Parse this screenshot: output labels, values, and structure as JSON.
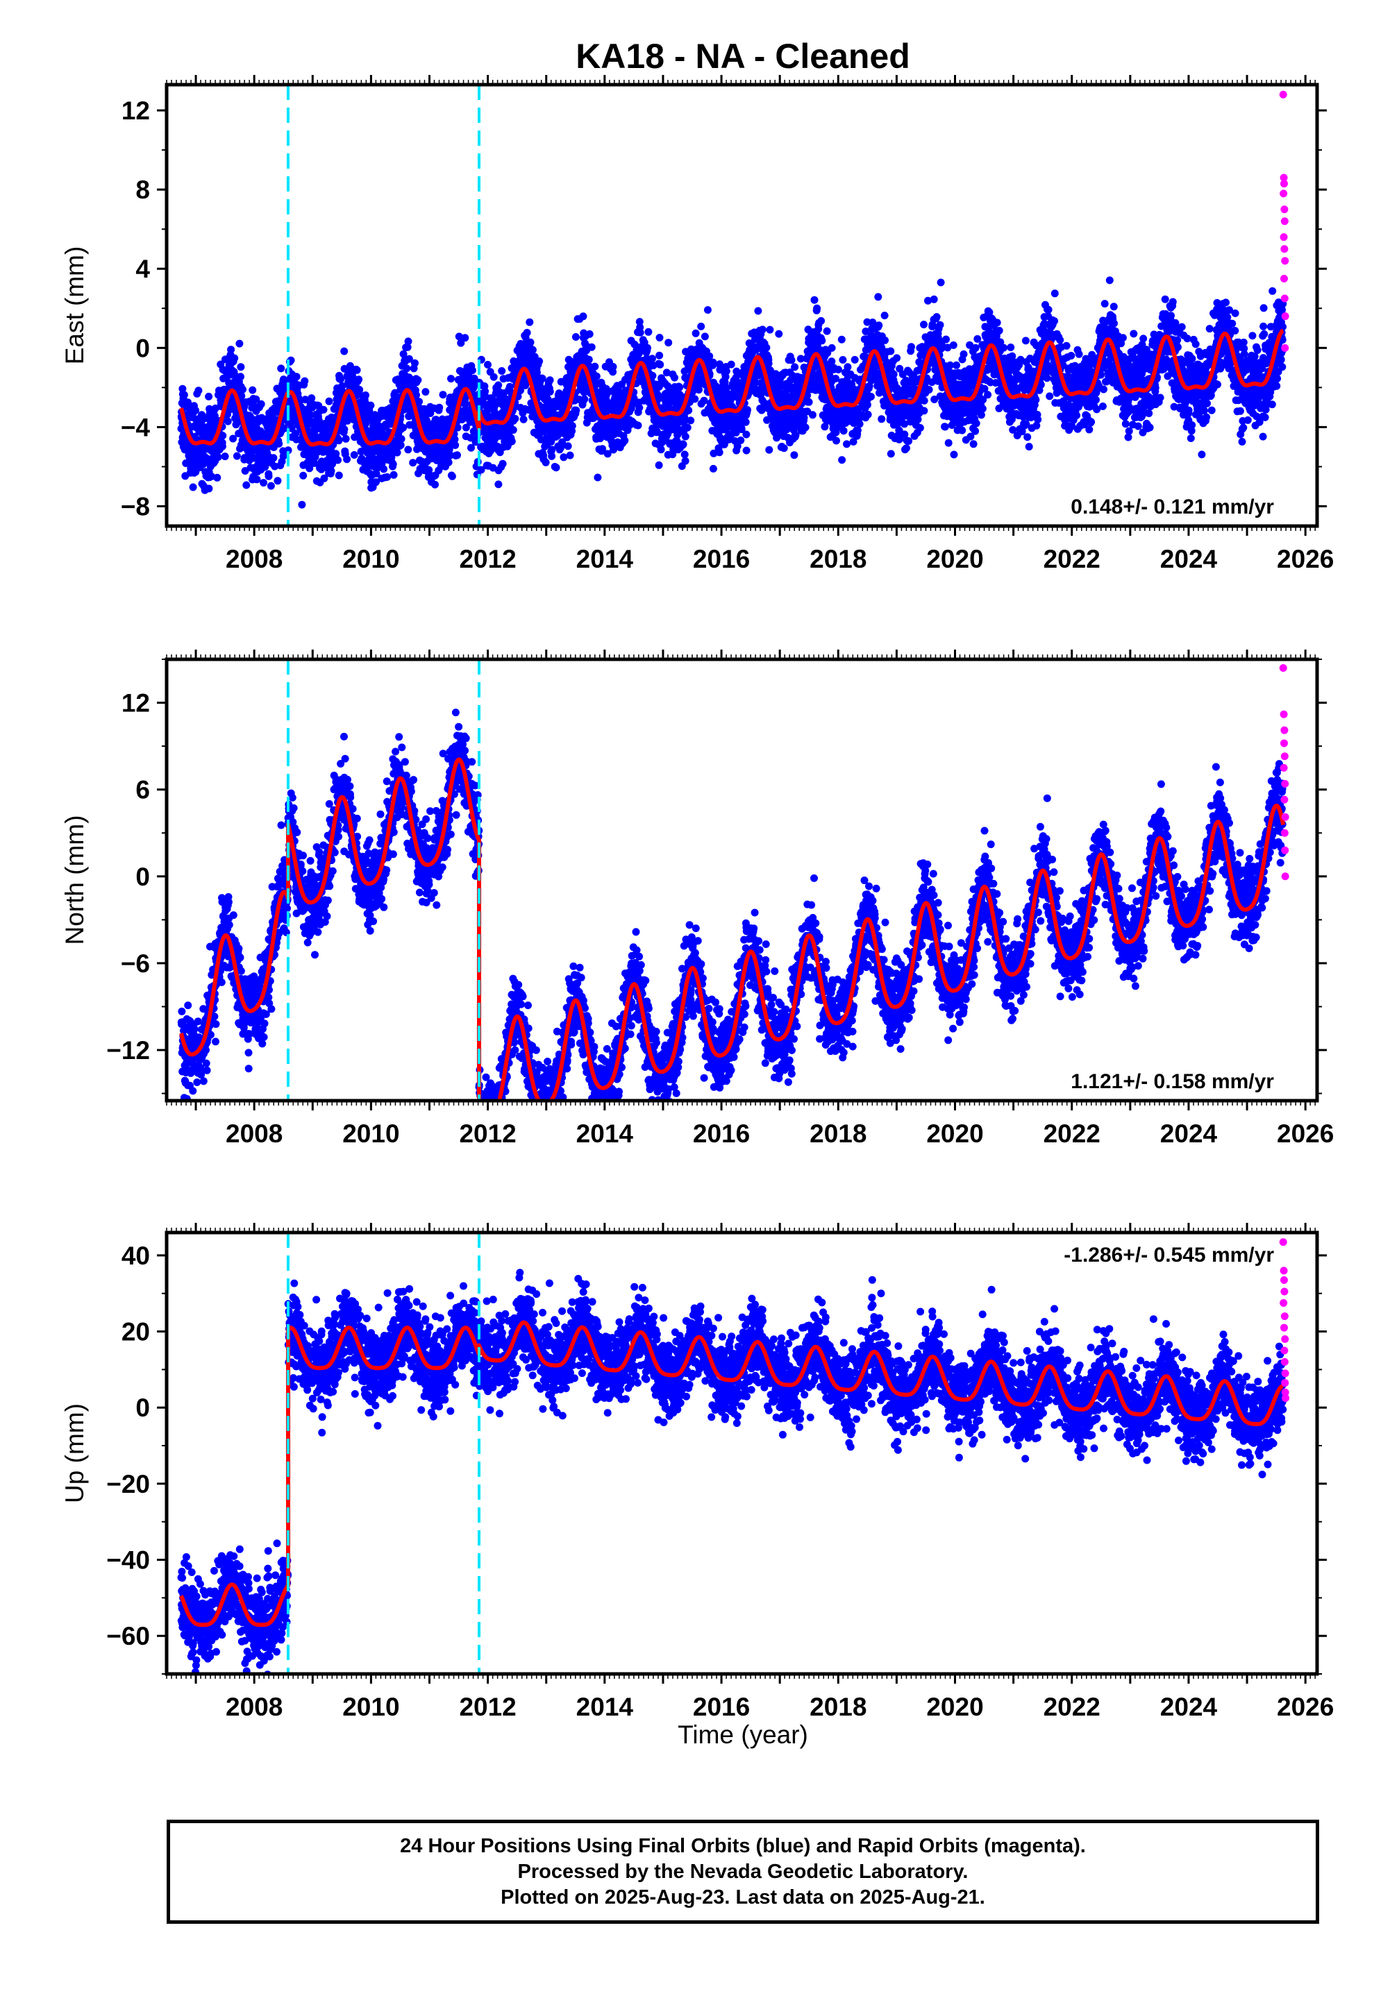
{
  "title": "KA18  - NA - Cleaned",
  "colors": {
    "final": "#0000ff",
    "rapid": "#ff00ff",
    "model": "#ff0000",
    "breaks": "#00e5ff",
    "frame": "#000000"
  },
  "xlabel": "Time (year)",
  "chart_data": [
    {
      "type": "scatter",
      "component": "East",
      "ylabel": "East (mm)",
      "xlim": [
        2006.5,
        2026.2
      ],
      "ylim": [
        -9,
        13.3
      ],
      "yticks": [
        -8,
        -4,
        0,
        4,
        8,
        12
      ],
      "xticks": [
        2008,
        2010,
        2012,
        2014,
        2016,
        2018,
        2020,
        2022,
        2024,
        2026
      ],
      "breaks": [
        2008.58,
        2011.85
      ],
      "rate_text": "0.148+/- 0.121 mm/yr",
      "rate_position": "bottom-right",
      "model": {
        "segments": [
          {
            "x0": 2006.75,
            "x1": 2008.58,
            "offset": -3.9,
            "trend": 0.0
          },
          {
            "x0": 2008.58,
            "x1": 2011.85,
            "offset": -3.9,
            "trend": 0.05
          },
          {
            "x0": 2011.85,
            "x1": 2025.62,
            "offset": -1.9,
            "trend": 0.148
          }
        ],
        "annual_amplitude": 1.3,
        "annual_peak_phase": 0.62,
        "semiannual_amplitude": 0.45
      },
      "scatter_std": 1.0,
      "rapid_points": [
        [
          2025.62,
          12.8
        ],
        [
          2025.63,
          8.6
        ],
        [
          2025.635,
          8.3
        ],
        [
          2025.625,
          7.8
        ],
        [
          2025.64,
          7.0
        ],
        [
          2025.645,
          6.4
        ],
        [
          2025.63,
          5.6
        ],
        [
          2025.64,
          5.0
        ],
        [
          2025.65,
          4.4
        ],
        [
          2025.635,
          3.5
        ],
        [
          2025.645,
          2.5
        ],
        [
          2025.655,
          1.6
        ],
        [
          2025.65,
          0.0
        ]
      ]
    },
    {
      "type": "scatter",
      "component": "North",
      "ylabel": "North (mm)",
      "xlim": [
        2006.5,
        2026.2
      ],
      "ylim": [
        -15.5,
        15
      ],
      "yticks": [
        -12,
        -6,
        0,
        6,
        12
      ],
      "xticks": [
        2008,
        2010,
        2012,
        2014,
        2016,
        2018,
        2020,
        2022,
        2024,
        2026
      ],
      "breaks": [
        2008.58,
        2011.85
      ],
      "rate_text": "1.121+/- 0.158 mm/yr",
      "rate_position": "bottom-right",
      "model": {
        "segments": [
          {
            "x0": 2006.75,
            "x1": 2008.58,
            "offset": -7.5,
            "trend": 3.0
          },
          {
            "x0": 2008.58,
            "x1": 2011.85,
            "offset": 2.5,
            "trend": 1.3
          },
          {
            "x0": 2011.85,
            "x1": 2025.62,
            "offset": -6.6,
            "trend": 1.121
          }
        ],
        "annual_amplitude": 3.3,
        "annual_peak_phase": 0.5,
        "semiannual_amplitude": 0.6
      },
      "scatter_std": 1.3,
      "rapid_points": [
        [
          2025.62,
          14.4
        ],
        [
          2025.63,
          11.2
        ],
        [
          2025.64,
          10.1
        ],
        [
          2025.635,
          9.2
        ],
        [
          2025.645,
          8.3
        ],
        [
          2025.63,
          7.5
        ],
        [
          2025.65,
          6.4
        ],
        [
          2025.64,
          5.3
        ],
        [
          2025.655,
          4.1
        ],
        [
          2025.645,
          3.0
        ],
        [
          2025.65,
          1.8
        ],
        [
          2025.655,
          0.0
        ]
      ]
    },
    {
      "type": "scatter",
      "component": "Up",
      "ylabel": "Up (mm)",
      "xlim": [
        2006.5,
        2026.2
      ],
      "ylim": [
        -70,
        46
      ],
      "yticks": [
        -60,
        -40,
        -20,
        0,
        20,
        40
      ],
      "xticks": [
        2008,
        2010,
        2012,
        2014,
        2016,
        2018,
        2020,
        2022,
        2024,
        2026
      ],
      "breaks": [
        2008.58,
        2011.85
      ],
      "rate_text": "-1.286+/- 0.545 mm/yr",
      "rate_position": "top-right",
      "model": {
        "segments": [
          {
            "x0": 2006.75,
            "x1": 2008.58,
            "offset": -53.0,
            "trend": 0.0
          },
          {
            "x0": 2008.58,
            "x1": 2011.85,
            "offset": 14.5,
            "trend": 0.0
          },
          {
            "x0": 2011.85,
            "x1": 2025.62,
            "offset": 8.0,
            "trend": -1.286
          }
        ],
        "annual_amplitude": 5.3,
        "annual_peak_phase": 0.62,
        "semiannual_amplitude": 1.2
      },
      "scatter_std": 5.0,
      "rapid_points": [
        [
          2025.62,
          43.5
        ],
        [
          2025.63,
          36.0
        ],
        [
          2025.635,
          33.5
        ],
        [
          2025.64,
          30.5
        ],
        [
          2025.625,
          27.5
        ],
        [
          2025.645,
          24.0
        ],
        [
          2025.635,
          21.0
        ],
        [
          2025.65,
          18.0
        ],
        [
          2025.64,
          15.0
        ],
        [
          2025.645,
          12.0
        ],
        [
          2025.655,
          9.0
        ],
        [
          2025.65,
          6.5
        ],
        [
          2025.655,
          4.0
        ],
        [
          2025.66,
          2.5
        ]
      ]
    }
  ],
  "footer": {
    "line1": "24 Hour Positions Using Final Orbits (blue) and Rapid Orbits (magenta).",
    "line2": "Processed by the Nevada Geodetic Laboratory.",
    "line3": "Plotted on 2025-Aug-23. Last data on 2025-Aug-21."
  }
}
